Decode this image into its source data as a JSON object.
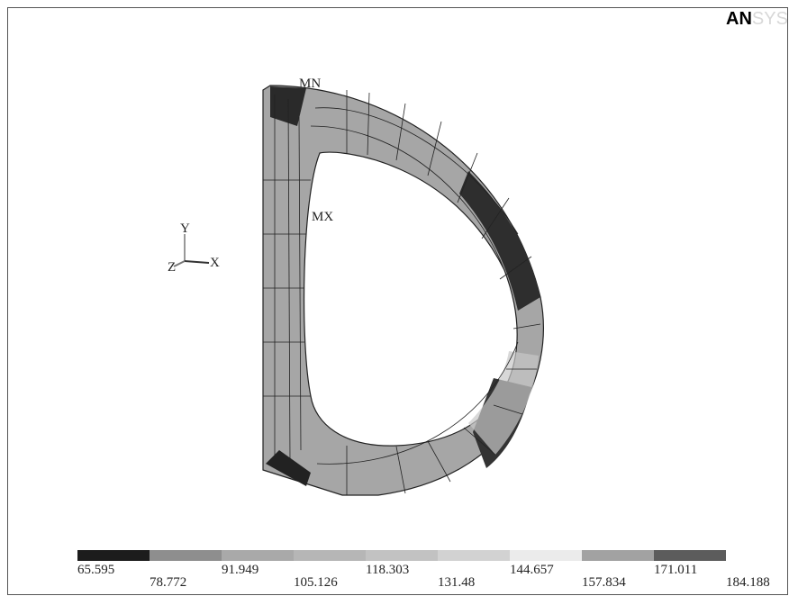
{
  "logo": {
    "dark": "AN",
    "light": "SYS"
  },
  "triad": {
    "x": "X",
    "y": "Y",
    "z": "Z"
  },
  "markers": {
    "min": "MN",
    "max": "MX"
  },
  "legend": {
    "colors": [
      "#1c1c1c",
      "#8e8e8e",
      "#a9a9a9",
      "#b6b6b6",
      "#c2c2c2",
      "#d2d2d2",
      "#ebebeb",
      "#a2a2a2",
      "#5c5c5c"
    ],
    "labels": [
      "65.595",
      "78.772",
      "91.949",
      "105.126",
      "118.303",
      "131.48",
      "144.657",
      "157.834",
      "171.011",
      "184.188"
    ]
  }
}
